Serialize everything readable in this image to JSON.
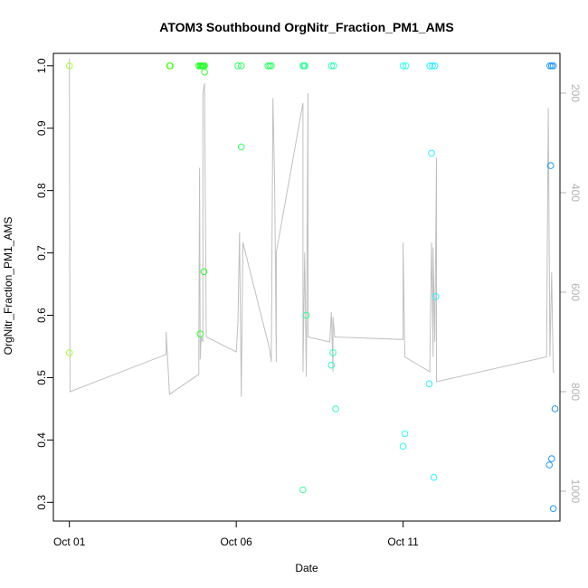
{
  "chart_data": {
    "type": "scatter",
    "title": "ATOM3 Southbound OrgNitr_Fraction_PM1_AMS",
    "xlabel": "Date",
    "ylabel": "OrgNitr_Fraction_PM1_AMS",
    "x_ticks": [
      {
        "label": "Oct 01",
        "day": 1
      },
      {
        "label": "Oct 06",
        "day": 6
      },
      {
        "label": "Oct 11",
        "day": 11
      }
    ],
    "xlim": [
      0.52,
      15.7
    ],
    "ylim": [
      0.27,
      1.02
    ],
    "y_ticks": [
      0.3,
      0.4,
      0.5,
      0.6,
      0.7,
      0.8,
      0.9,
      1.0
    ],
    "y2_ticks": [
      200,
      400,
      600,
      800,
      1000
    ],
    "y2lim": [
      1060,
      120
    ],
    "grid": false,
    "points": [
      {
        "x": 1.0,
        "y": 1.0,
        "color": "#a6ff33"
      },
      {
        "x": 1.0,
        "y": 0.54,
        "color": "#a6ff33"
      },
      {
        "x": 4.0,
        "y": 1.0,
        "color": "#4dff1a"
      },
      {
        "x": 4.02,
        "y": 1.0,
        "color": "#4dff1a"
      },
      {
        "x": 4.88,
        "y": 1.0,
        "color": "#33ff33"
      },
      {
        "x": 4.92,
        "y": 1.0,
        "color": "#33ff33"
      },
      {
        "x": 4.95,
        "y": 1.0,
        "color": "#33ff33"
      },
      {
        "x": 4.98,
        "y": 1.0,
        "color": "#33ff33"
      },
      {
        "x": 5.0,
        "y": 1.0,
        "color": "#33ff33"
      },
      {
        "x": 5.02,
        "y": 1.0,
        "color": "#33ff33"
      },
      {
        "x": 5.05,
        "y": 1.0,
        "color": "#33ff33"
      },
      {
        "x": 5.05,
        "y": 0.99,
        "color": "#33ff33"
      },
      {
        "x": 5.03,
        "y": 0.67,
        "color": "#33ff33"
      },
      {
        "x": 4.92,
        "y": 0.57,
        "color": "#33ff33"
      },
      {
        "x": 6.05,
        "y": 1.0,
        "color": "#33ff66"
      },
      {
        "x": 6.15,
        "y": 1.0,
        "color": "#33ff66"
      },
      {
        "x": 6.15,
        "y": 0.87,
        "color": "#33ff66"
      },
      {
        "x": 6.95,
        "y": 1.0,
        "color": "#33ff66"
      },
      {
        "x": 7.0,
        "y": 1.0,
        "color": "#33ff66"
      },
      {
        "x": 7.05,
        "y": 1.0,
        "color": "#33ff66"
      },
      {
        "x": 8.0,
        "y": 1.0,
        "color": "#33ff99"
      },
      {
        "x": 8.03,
        "y": 1.0,
        "color": "#33ff99"
      },
      {
        "x": 8.06,
        "y": 1.0,
        "color": "#33ff99"
      },
      {
        "x": 8.1,
        "y": 0.6,
        "color": "#33ff99"
      },
      {
        "x": 8.0,
        "y": 0.32,
        "color": "#33ff99"
      },
      {
        "x": 8.85,
        "y": 1.0,
        "color": "#33ffb3"
      },
      {
        "x": 8.92,
        "y": 1.0,
        "color": "#33ffb3"
      },
      {
        "x": 8.9,
        "y": 0.54,
        "color": "#33ffb3"
      },
      {
        "x": 8.85,
        "y": 0.52,
        "color": "#33ffb3"
      },
      {
        "x": 8.98,
        "y": 0.45,
        "color": "#33ffb3"
      },
      {
        "x": 11.0,
        "y": 1.0,
        "color": "#33ffee"
      },
      {
        "x": 11.08,
        "y": 1.0,
        "color": "#33ffee"
      },
      {
        "x": 11.05,
        "y": 0.41,
        "color": "#33ffee"
      },
      {
        "x": 11.0,
        "y": 0.39,
        "color": "#33ffee"
      },
      {
        "x": 11.8,
        "y": 1.0,
        "color": "#33eeff"
      },
      {
        "x": 11.88,
        "y": 1.0,
        "color": "#33eeff"
      },
      {
        "x": 11.95,
        "y": 1.0,
        "color": "#33eeff"
      },
      {
        "x": 11.85,
        "y": 0.86,
        "color": "#33eeff"
      },
      {
        "x": 11.98,
        "y": 0.63,
        "color": "#33eeff"
      },
      {
        "x": 11.78,
        "y": 0.49,
        "color": "#33eeff"
      },
      {
        "x": 11.92,
        "y": 0.34,
        "color": "#33eeff"
      },
      {
        "x": 15.4,
        "y": 1.0,
        "color": "#2299ee"
      },
      {
        "x": 15.45,
        "y": 1.0,
        "color": "#2299ee"
      },
      {
        "x": 15.5,
        "y": 1.0,
        "color": "#2299ee"
      },
      {
        "x": 15.42,
        "y": 0.84,
        "color": "#2299ee"
      },
      {
        "x": 15.55,
        "y": 0.45,
        "color": "#2299ee"
      },
      {
        "x": 15.45,
        "y": 0.37,
        "color": "#2299ee"
      },
      {
        "x": 15.38,
        "y": 0.36,
        "color": "#2299ee"
      },
      {
        "x": 15.5,
        "y": 0.29,
        "color": "#2299ee"
      }
    ],
    "track": {
      "color": "#c0c0c0",
      "points": [
        [
          1.0,
          130
        ],
        [
          1.02,
          800
        ],
        [
          3.9,
          725
        ],
        [
          3.9,
          680
        ],
        [
          4.0,
          805
        ],
        [
          4.88,
          765
        ],
        [
          4.88,
          700
        ],
        [
          4.9,
          350
        ],
        [
          4.92,
          735
        ],
        [
          4.95,
          690
        ],
        [
          5.0,
          700
        ],
        [
          5.0,
          200
        ],
        [
          5.05,
          180
        ],
        [
          5.1,
          690
        ],
        [
          6.0,
          720
        ],
        [
          6.05,
          660
        ],
        [
          6.1,
          480
        ],
        [
          6.15,
          810
        ],
        [
          6.2,
          500
        ],
        [
          7.0,
          715
        ],
        [
          7.05,
          740
        ],
        [
          7.1,
          210
        ],
        [
          7.15,
          380
        ],
        [
          7.2,
          740
        ],
        [
          7.2,
          520
        ],
        [
          8.0,
          220
        ],
        [
          8.0,
          760
        ],
        [
          8.05,
          520
        ],
        [
          8.1,
          770
        ],
        [
          8.15,
          200
        ],
        [
          8.15,
          690
        ],
        [
          8.8,
          700
        ],
        [
          8.85,
          640
        ],
        [
          8.9,
          760
        ],
        [
          8.9,
          650
        ],
        [
          8.95,
          690
        ],
        [
          11.0,
          695
        ],
        [
          11.0,
          500
        ],
        [
          11.05,
          730
        ],
        [
          11.8,
          760
        ],
        [
          11.85,
          500
        ],
        [
          11.9,
          730
        ],
        [
          11.9,
          510
        ],
        [
          11.95,
          700
        ],
        [
          12.0,
          330
        ],
        [
          12.0,
          780
        ],
        [
          15.3,
          730
        ],
        [
          15.35,
          230
        ],
        [
          15.4,
          730
        ],
        [
          15.45,
          560
        ],
        [
          15.5,
          760
        ],
        [
          15.55,
          760
        ]
      ]
    }
  }
}
